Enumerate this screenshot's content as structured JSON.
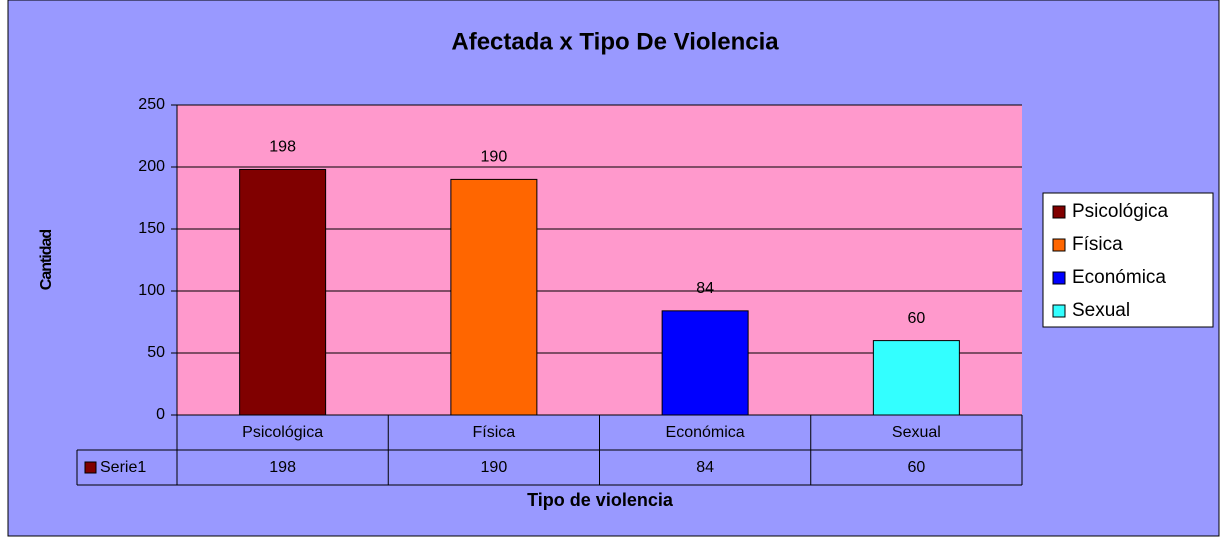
{
  "chart_data": {
    "type": "bar",
    "title": "Afectada x Tipo De Violencia",
    "x_label": "Tipo de violencia",
    "y_label": "Cantidad",
    "categories": [
      "Psicológica",
      "Física",
      "Económica",
      "Sexual"
    ],
    "series": [
      {
        "name": "Serie1",
        "color": "#800000",
        "values": [
          198,
          190,
          84,
          60
        ],
        "colors": [
          "#800000",
          "#ff6600",
          "#0000ff",
          "#33ffff"
        ]
      }
    ],
    "ylim": [
      0,
      250
    ],
    "yticks": [
      0,
      50,
      100,
      150,
      200,
      250
    ],
    "grid": true,
    "legend": "right",
    "data_table": true
  }
}
